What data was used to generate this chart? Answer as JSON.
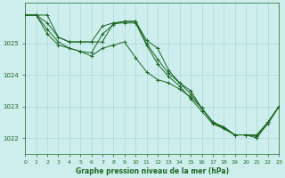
{
  "title": "Graphe pression niveau de la mer (hPa)",
  "background_color": "#ceeeed",
  "grid_color": "#aad8d8",
  "line_color": "#1a6620",
  "xlim": [
    0,
    23
  ],
  "ylim": [
    1021.5,
    1026.3
  ],
  "yticks": [
    1022,
    1023,
    1024,
    1025
  ],
  "xticks": [
    0,
    1,
    2,
    3,
    4,
    5,
    6,
    7,
    8,
    9,
    10,
    11,
    12,
    13,
    14,
    15,
    16,
    17,
    18,
    19,
    20,
    21,
    22,
    23
  ],
  "series": [
    {
      "x": [
        0,
        1,
        2,
        3,
        4,
        5,
        6,
        7,
        8,
        9,
        10,
        11,
        12,
        13,
        14,
        15,
        16,
        17,
        18,
        19,
        20,
        21,
        22,
        23
      ],
      "y": [
        1025.9,
        1025.9,
        1025.65,
        1025.2,
        1025.05,
        1025.05,
        1025.05,
        1025.05,
        1025.65,
        1025.7,
        1025.7,
        1025.1,
        1024.85,
        1024.15,
        1023.75,
        1023.4,
        1022.95,
        1022.5,
        1022.35,
        1022.1,
        1022.1,
        1022.1,
        1022.5,
        1023.0
      ]
    },
    {
      "x": [
        0,
        1,
        2,
        3,
        4,
        5,
        6,
        7,
        8,
        9,
        10,
        11,
        12,
        13,
        14,
        15,
        16,
        17,
        18,
        19,
        20,
        21,
        22,
        23
      ],
      "y": [
        1025.9,
        1025.9,
        1025.45,
        1025.05,
        1024.85,
        1024.75,
        1024.7,
        1025.3,
        1025.6,
        1025.7,
        1025.7,
        1025.0,
        1024.5,
        1024.05,
        1023.75,
        1023.5,
        1022.95,
        1022.5,
        1022.35,
        1022.1,
        1022.1,
        1022.0,
        1022.5,
        1023.0
      ]
    },
    {
      "x": [
        0,
        1,
        2,
        3,
        4,
        5,
        6,
        7,
        8,
        9,
        10,
        11,
        12,
        13,
        14,
        15,
        16,
        17,
        18,
        19,
        20,
        21,
        22,
        23
      ],
      "y": [
        1025.9,
        1025.9,
        1025.3,
        1024.95,
        1024.85,
        1024.75,
        1024.6,
        1024.85,
        1024.95,
        1025.05,
        1024.55,
        1024.1,
        1023.85,
        1023.75,
        1023.55,
        1023.3,
        1022.95,
        1022.5,
        1022.3,
        1022.1,
        1022.1,
        1022.1,
        1022.5,
        1023.0
      ]
    },
    {
      "x": [
        0,
        1,
        2,
        3,
        4,
        5,
        6,
        7,
        8,
        9,
        10,
        11,
        12,
        13,
        14,
        15,
        16,
        17,
        18,
        19,
        20,
        21,
        22,
        23
      ],
      "y": [
        1025.9,
        1025.9,
        1025.9,
        1025.2,
        1025.05,
        1025.05,
        1025.05,
        1025.55,
        1025.65,
        1025.65,
        1025.65,
        1024.95,
        1024.35,
        1023.95,
        1023.65,
        1023.25,
        1022.85,
        1022.45,
        1022.3,
        1022.1,
        1022.1,
        1022.05,
        1022.45,
        1023.0
      ]
    }
  ]
}
